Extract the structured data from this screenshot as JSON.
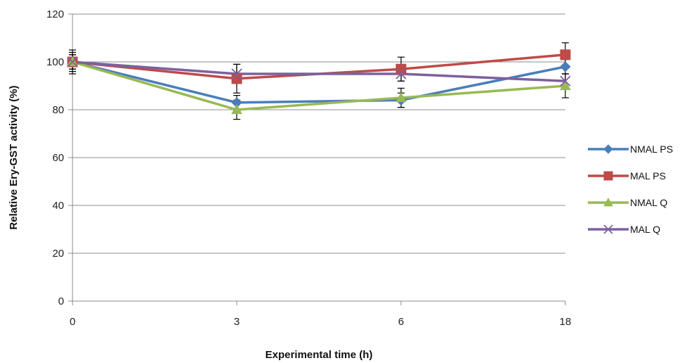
{
  "chart_data": {
    "type": "line",
    "title": "",
    "xlabel": "Experimental time (h)",
    "ylabel": "Relative Ery-GST activity (%)",
    "categories": [
      "0",
      "3",
      "6",
      "18"
    ],
    "ylim": [
      0,
      120
    ],
    "yticks": [
      0,
      20,
      40,
      60,
      80,
      100,
      120
    ],
    "grid": "horizontal",
    "legend": "right",
    "series": [
      {
        "name": "NMAL PS",
        "color": "#4a7ebb",
        "marker": "diamond",
        "values": [
          100,
          83,
          84,
          98
        ],
        "errors": [
          4,
          3,
          3,
          3
        ]
      },
      {
        "name": "MAL PS",
        "color": "#be4b48",
        "marker": "square",
        "values": [
          100,
          93,
          97,
          103
        ],
        "errors": [
          5,
          6,
          5,
          5
        ]
      },
      {
        "name": "NMAL Q",
        "color": "#98b954",
        "marker": "triangle",
        "values": [
          100,
          80,
          85,
          90
        ],
        "errors": [
          3,
          4,
          4,
          5
        ]
      },
      {
        "name": "MAL Q",
        "color": "#7d60a0",
        "marker": "x",
        "values": [
          100,
          95,
          95,
          92
        ],
        "errors": [
          3,
          4,
          3,
          3
        ]
      }
    ]
  }
}
